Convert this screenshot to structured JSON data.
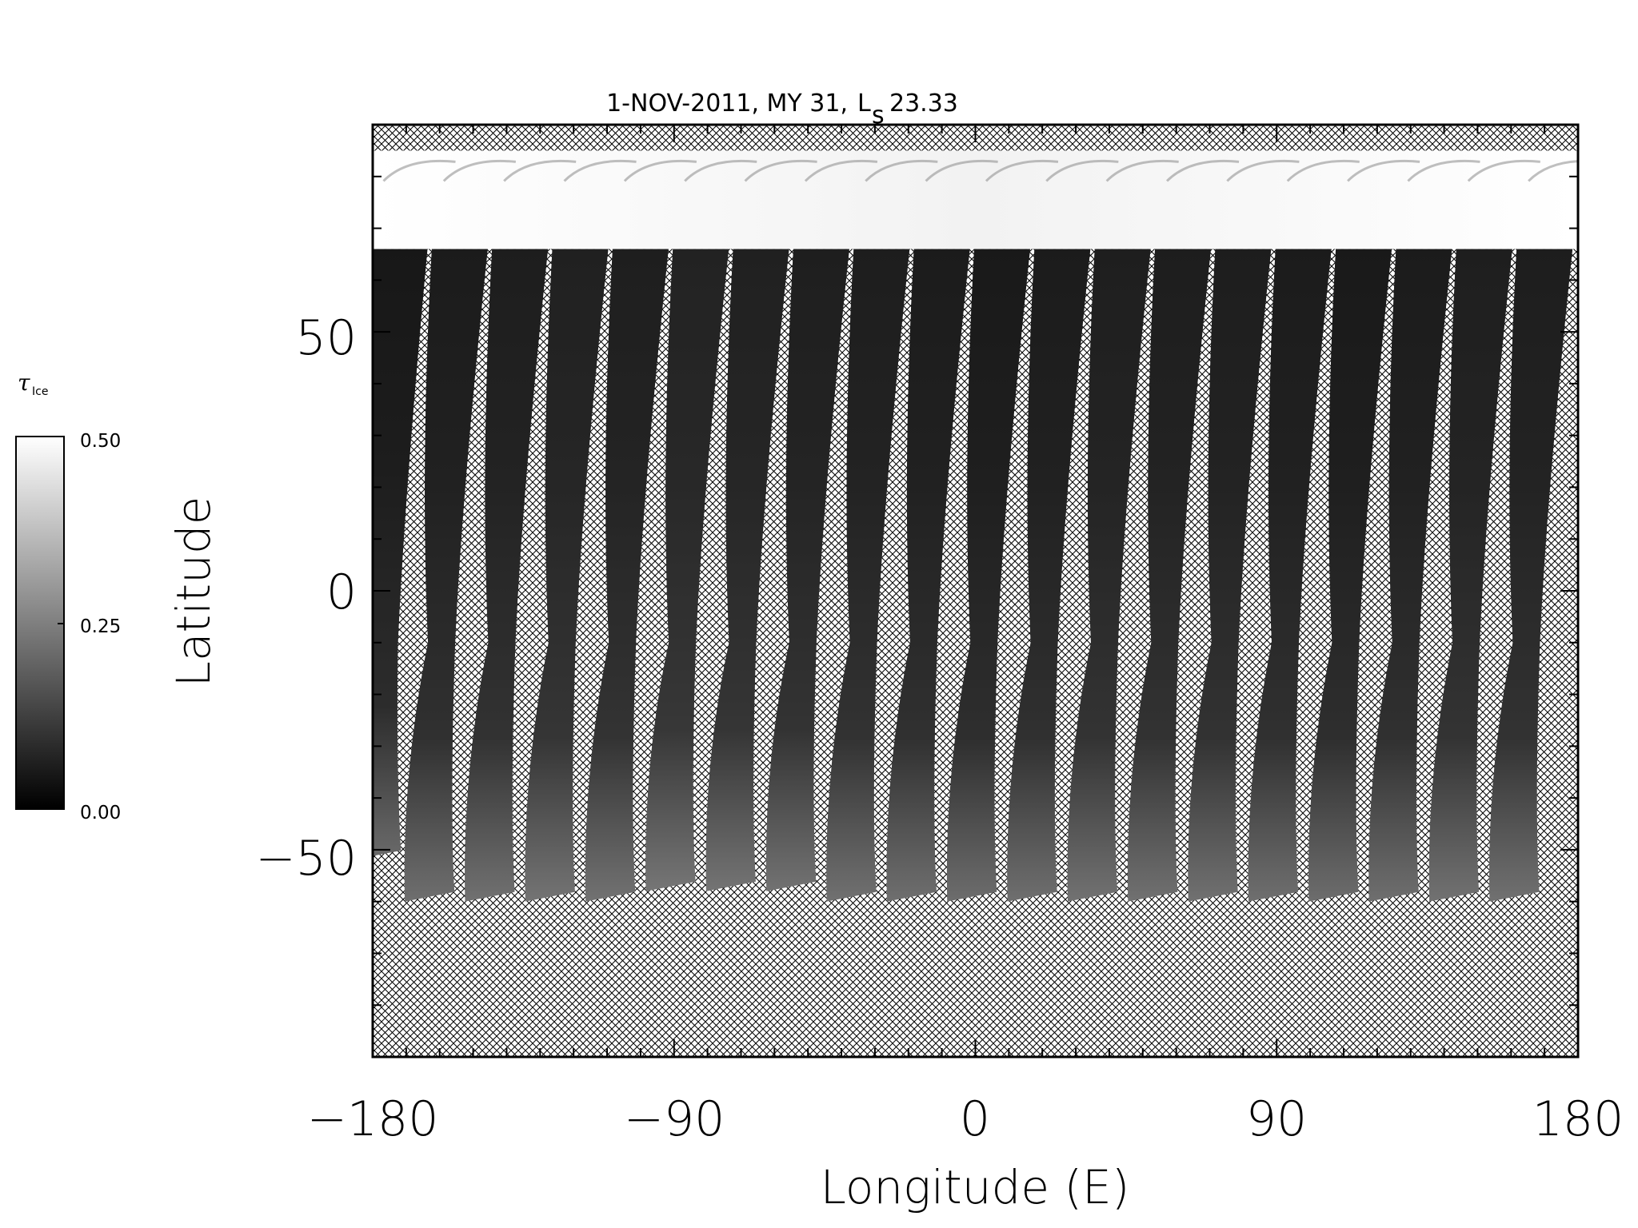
{
  "chart_data": {
    "type": "heatmap",
    "title": "1-NOV-2011, MY 31,",
    "title_ls_symbol": "L",
    "title_ls_subscript": "s",
    "title_ls_value": "23.33",
    "xlabel": "Longitude (E)",
    "ylabel": "Latitude",
    "xlim": [
      -180,
      180
    ],
    "ylim": [
      -90,
      90
    ],
    "xticks": [
      -180,
      -90,
      0,
      90,
      180
    ],
    "xtick_labels": [
      "−180",
      "−90",
      "0",
      "90",
      "180"
    ],
    "yticks": [
      -50,
      0,
      50
    ],
    "ytick_labels": [
      "−50",
      "0",
      "50"
    ],
    "x_minor_step": 10,
    "y_minor_step": 10,
    "no_data_pattern": "crosshatch",
    "polar_cap_lat_range": [
      66,
      85
    ],
    "colorbar": {
      "label_tau": "τ",
      "label_sub": "Ice",
      "min": 0.0,
      "max": 0.5,
      "ticks": [
        "0.50",
        "0.25",
        "0.00"
      ],
      "tick_values": [
        0.5,
        0.25,
        0.0
      ],
      "colors": [
        "#ffffff",
        "#000000"
      ]
    },
    "swaths": [
      {
        "lon_top": -172,
        "lon_bottom": -179,
        "lat_top": 66,
        "lat_bottom": -52,
        "value": 0.04
      },
      {
        "lon_top": -154,
        "lon_bottom": -163,
        "lat_top": 66,
        "lat_bottom": -60,
        "value": 0.06
      },
      {
        "lon_top": -136,
        "lon_bottom": -145,
        "lat_top": 66,
        "lat_bottom": -60,
        "value": 0.07
      },
      {
        "lon_top": -118,
        "lon_bottom": -127,
        "lat_top": 66,
        "lat_bottom": -60,
        "value": 0.09
      },
      {
        "lon_top": -100,
        "lon_bottom": -109,
        "lat_top": 66,
        "lat_bottom": -60,
        "value": 0.08
      },
      {
        "lon_top": -82,
        "lon_bottom": -91,
        "lat_top": 66,
        "lat_bottom": -58,
        "value": 0.1
      },
      {
        "lon_top": -64,
        "lon_bottom": -73,
        "lat_top": 66,
        "lat_bottom": -58,
        "value": 0.09
      },
      {
        "lon_top": -46,
        "lon_bottom": -55,
        "lat_top": 66,
        "lat_bottom": -58,
        "value": 0.08
      },
      {
        "lon_top": -28,
        "lon_bottom": -37,
        "lat_top": 66,
        "lat_bottom": -60,
        "value": 0.07
      },
      {
        "lon_top": -10,
        "lon_bottom": -19,
        "lat_top": 66,
        "lat_bottom": -60,
        "value": 0.06
      },
      {
        "lon_top": 8,
        "lon_bottom": -1,
        "lat_top": 66,
        "lat_bottom": -60,
        "value": 0.05
      },
      {
        "lon_top": 26,
        "lon_bottom": 17,
        "lat_top": 66,
        "lat_bottom": -60,
        "value": 0.06
      },
      {
        "lon_top": 44,
        "lon_bottom": 35,
        "lat_top": 66,
        "lat_bottom": -60,
        "value": 0.08
      },
      {
        "lon_top": 62,
        "lon_bottom": 53,
        "lat_top": 66,
        "lat_bottom": -60,
        "value": 0.07
      },
      {
        "lon_top": 80,
        "lon_bottom": 71,
        "lat_top": 66,
        "lat_bottom": -60,
        "value": 0.07
      },
      {
        "lon_top": 98,
        "lon_bottom": 89,
        "lat_top": 66,
        "lat_bottom": -60,
        "value": 0.06
      },
      {
        "lon_top": 116,
        "lon_bottom": 107,
        "lat_top": 66,
        "lat_bottom": -60,
        "value": 0.05
      },
      {
        "lon_top": 134,
        "lon_bottom": 125,
        "lat_top": 66,
        "lat_bottom": -60,
        "value": 0.06
      },
      {
        "lon_top": 152,
        "lon_bottom": 143,
        "lat_top": 66,
        "lat_bottom": -60,
        "value": 0.08
      },
      {
        "lon_top": 170,
        "lon_bottom": 161,
        "lat_top": 66,
        "lat_bottom": -60,
        "value": 0.07
      }
    ]
  }
}
